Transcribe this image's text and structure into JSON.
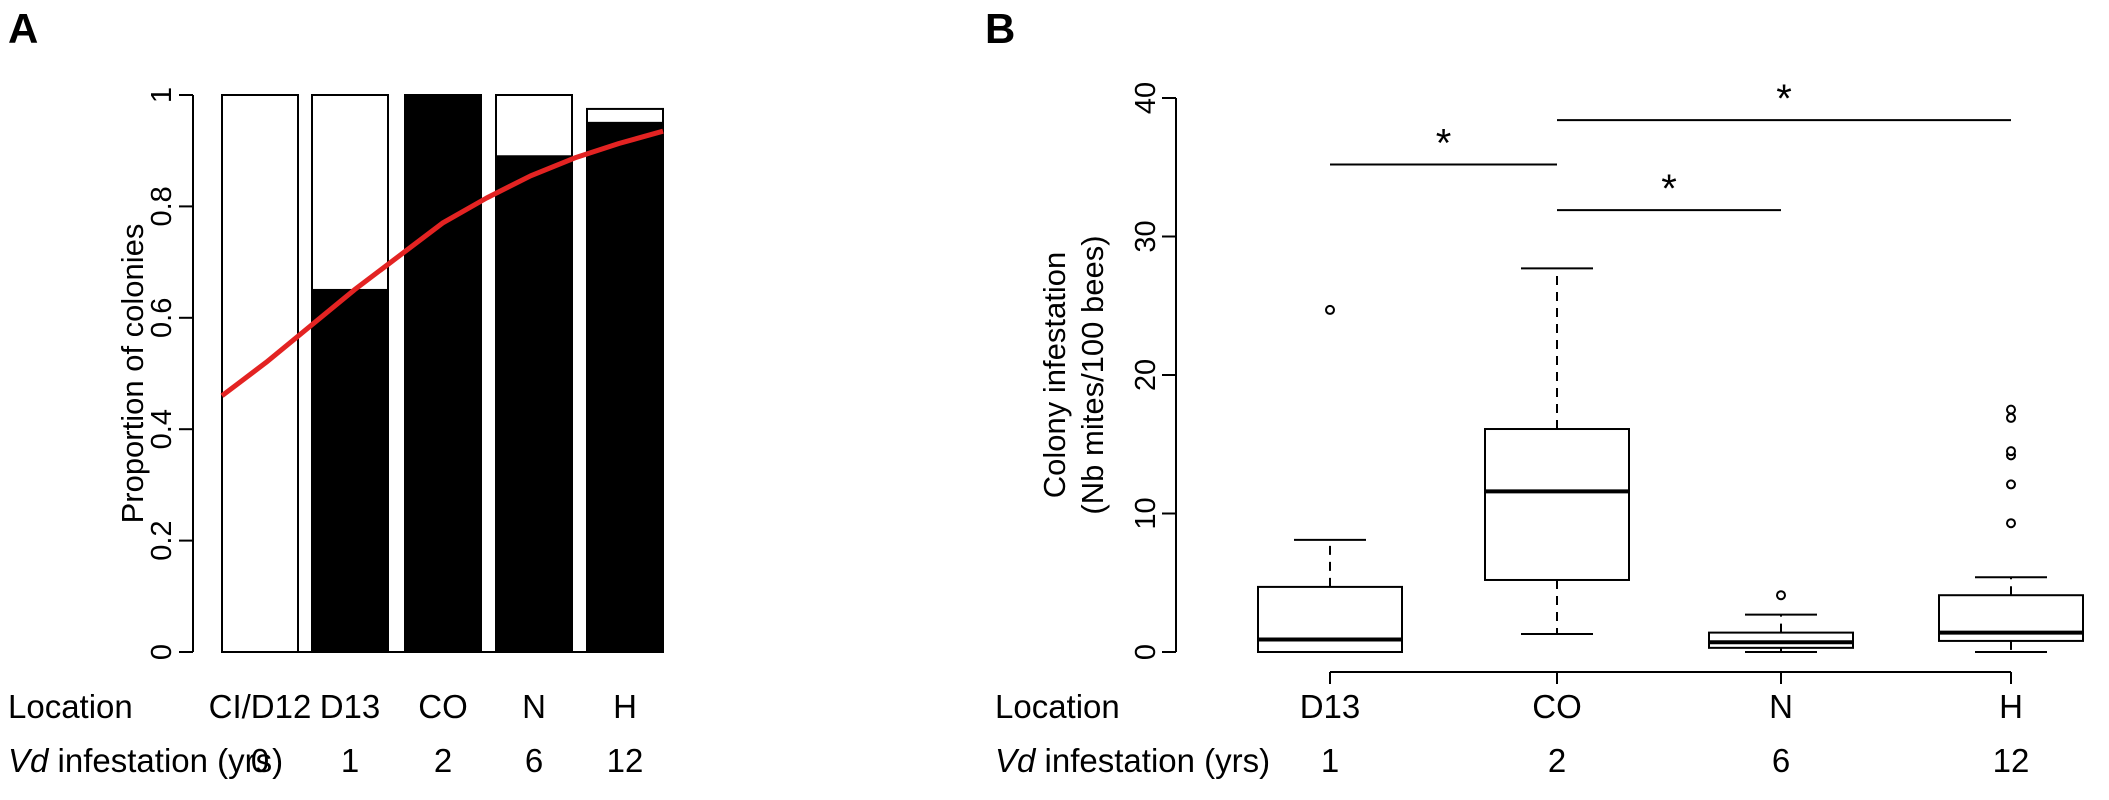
{
  "chart_data": [
    {
      "panel": "A",
      "type": "bar",
      "ylabel": "Proportion of colonies",
      "ylim": [
        0,
        1
      ],
      "yticks": [
        "0",
        "0.2",
        "0.4",
        "0.6",
        "0.8",
        "1"
      ],
      "ytick_values": [
        0,
        0.2,
        0.4,
        0.6,
        0.8,
        1
      ],
      "categories": [
        "CI/D12",
        "D13",
        "CO",
        "N",
        "H"
      ],
      "x_years": [
        "0",
        "1",
        "2",
        "6",
        "12"
      ],
      "infested": [
        0,
        0.65,
        1.0,
        0.89,
        0.95
      ],
      "totals": [
        1,
        1,
        1,
        1,
        0.975
      ],
      "fit_curve": {
        "color": "#e32322",
        "points": [
          [
            0,
            0.46
          ],
          [
            0.5,
            0.52
          ],
          [
            1,
            0.585
          ],
          [
            1.5,
            0.65
          ],
          [
            2,
            0.71
          ],
          [
            2.5,
            0.77
          ],
          [
            3,
            0.815
          ],
          [
            3.5,
            0.855
          ],
          [
            4,
            0.887
          ],
          [
            4.5,
            0.913
          ],
          [
            5,
            0.935
          ]
        ]
      },
      "row_labels": {
        "location": "Location",
        "vd_italic": "Vd",
        "vd_rest": " infestation (yrs)"
      }
    },
    {
      "panel": "B",
      "type": "box",
      "ylabel_line1": "Colony infestation",
      "ylabel_line2": "(Nb mites/100 bees)",
      "ylim": [
        0,
        40
      ],
      "yticks": [
        "0",
        "10",
        "20",
        "30",
        "40"
      ],
      "ytick_values": [
        0,
        10,
        20,
        30,
        40
      ],
      "categories": [
        "D13",
        "CO",
        "N",
        "H"
      ],
      "x_years": [
        "1",
        "2",
        "6",
        "12"
      ],
      "boxes": [
        {
          "name": "D13",
          "min": 0,
          "q1": 0,
          "median": 0.9,
          "q3": 4.7,
          "max": 8.1,
          "outliers": [
            24.7
          ]
        },
        {
          "name": "CO",
          "min": 1.3,
          "q1": 5.2,
          "median": 11.6,
          "q3": 16.1,
          "max": 27.7,
          "outliers": []
        },
        {
          "name": "N",
          "min": 0,
          "q1": 0.3,
          "median": 0.7,
          "q3": 1.4,
          "max": 2.7,
          "outliers": [
            4.1
          ]
        },
        {
          "name": "H",
          "min": 0,
          "q1": 0.8,
          "median": 1.4,
          "q3": 4.1,
          "max": 5.4,
          "outliers": [
            9.3,
            12.1,
            14.2,
            14.5,
            16.9,
            17.5
          ]
        }
      ],
      "significance": [
        {
          "from": 0,
          "to": 1,
          "y": 35.2,
          "label": "*"
        },
        {
          "from": 1,
          "to": 2,
          "y": 31.9,
          "label": "*"
        },
        {
          "from": 1,
          "to": 3,
          "y": 38.4,
          "label": "*"
        }
      ],
      "row_labels": {
        "location": "Location",
        "vd_italic": "Vd",
        "vd_rest": " infestation (yrs)"
      }
    }
  ]
}
